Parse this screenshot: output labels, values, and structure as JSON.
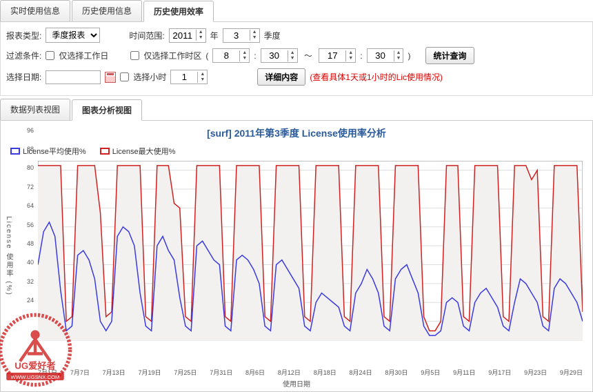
{
  "topTabs": [
    {
      "label": "实时使用信息",
      "active": false
    },
    {
      "label": "历史使用信息",
      "active": false
    },
    {
      "label": "历史使用效率",
      "active": true
    }
  ],
  "filters": {
    "reportTypeLabel": "报表类型:",
    "reportTypeValue": "季度报表",
    "timeRangeLabel": "时间范围:",
    "yearValue": "2011",
    "yearUnit": "年",
    "quarterValue": "3",
    "quarterUnit": "季度",
    "filterCondLabel": "过滤条件:",
    "workdayOnly": "仅选择工作日",
    "workhourOnly": "仅选择工作时区",
    "h1": "8",
    "m1": "30",
    "h2": "17",
    "m2": "30",
    "queryBtn": "统计查询",
    "selectDateLabel": "选择日期:",
    "dateValue": "",
    "selectHourLabel": "选择小时",
    "hourValue": "1",
    "detailBtn": "详细内容",
    "hint": "(查看具体1天或1小时的Lic使用情况)"
  },
  "subTabs": [
    {
      "label": "数据列表视图",
      "active": false
    },
    {
      "label": "图表分析视图",
      "active": true
    }
  ],
  "chart": {
    "title": "[surf] 2011年第3季度 License使用率分析",
    "legend": [
      {
        "label": "License平均使用%",
        "color": "#3a3ae0"
      },
      {
        "label": "License最大使用%",
        "color": "#d02020"
      }
    ],
    "yLabel": "License 使用率 (%)",
    "xLabel": "使用日期",
    "ylim": [
      24,
      100
    ],
    "ytickStep": 8,
    "gridColor": "#dddddd",
    "axisColor": "#888888",
    "bgColor": "#ffffff",
    "fillColor": "#f3f1ef",
    "xTicks": [
      "7月1日",
      "7月7日",
      "7月13日",
      "7月19日",
      "7月25日",
      "7月31日",
      "8月6日",
      "8月12日",
      "8月18日",
      "8月24日",
      "8月30日",
      "9月5日",
      "9月11日",
      "9月17日",
      "9月23日",
      "9月29日"
    ],
    "seriesAvg": [
      56,
      70,
      74,
      68,
      45,
      28,
      30,
      60,
      62,
      58,
      50,
      32,
      28,
      32,
      68,
      72,
      70,
      64,
      44,
      30,
      28,
      64,
      68,
      62,
      58,
      42,
      30,
      28,
      64,
      66,
      62,
      58,
      56,
      30,
      28,
      58,
      60,
      58,
      54,
      48,
      30,
      28,
      56,
      58,
      54,
      50,
      46,
      30,
      28,
      40,
      44,
      42,
      40,
      38,
      30,
      28,
      44,
      48,
      54,
      50,
      44,
      30,
      28,
      50,
      54,
      56,
      50,
      44,
      30,
      26,
      26,
      28,
      40,
      42,
      40,
      30,
      28,
      40,
      44,
      46,
      42,
      38,
      30,
      28,
      40,
      50,
      48,
      44,
      40,
      30,
      28,
      46,
      50,
      48,
      44,
      40,
      32
    ],
    "seriesMax": [
      98,
      98,
      98,
      98,
      98,
      32,
      34,
      98,
      98,
      98,
      98,
      78,
      34,
      36,
      98,
      98,
      98,
      98,
      98,
      34,
      32,
      98,
      98,
      98,
      82,
      80,
      34,
      32,
      98,
      98,
      98,
      98,
      98,
      34,
      32,
      98,
      98,
      98,
      98,
      98,
      34,
      32,
      98,
      98,
      98,
      98,
      98,
      34,
      32,
      98,
      98,
      98,
      98,
      98,
      34,
      32,
      98,
      98,
      98,
      98,
      98,
      34,
      32,
      98,
      98,
      98,
      98,
      98,
      34,
      28,
      28,
      32,
      98,
      98,
      98,
      34,
      32,
      98,
      98,
      98,
      98,
      98,
      34,
      32,
      98,
      98,
      98,
      92,
      96,
      34,
      32,
      98,
      98,
      98,
      98,
      98,
      36
    ],
    "watermark": {
      "text1": "UG爱好者",
      "text2": "WWW.UGSNX.COM",
      "color": "#d02020"
    }
  }
}
